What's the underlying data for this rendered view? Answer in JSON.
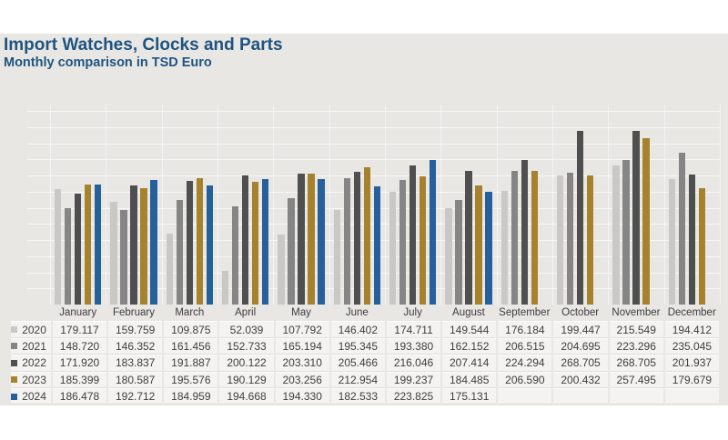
{
  "page": {
    "background": "#FFFFFF",
    "panel_background": "#E9E7E4"
  },
  "header": {
    "title": "Import Watches, Clocks and Parts",
    "subtitle": "Monthly comparison in TSD Euro",
    "title_color": "#1F5480"
  },
  "chart_data": {
    "type": "bar",
    "title": "Import Watches, Clocks and Parts",
    "subtitle": "Monthly comparison in TSD Euro",
    "unit": "TSD Euro",
    "categories": [
      "January",
      "February",
      "March",
      "April",
      "May",
      "June",
      "July",
      "August",
      "September",
      "October",
      "November",
      "December"
    ],
    "series": [
      {
        "name": "2020",
        "color": "#C9C8C6",
        "values": [
          179.117,
          159.759,
          109.875,
          52.039,
          107.792,
          146.402,
          174.711,
          149.544,
          176.184,
          199.447,
          215.549,
          194.412
        ]
      },
      {
        "name": "2021",
        "color": "#858585",
        "values": [
          148.72,
          146.352,
          161.456,
          152.733,
          165.194,
          195.345,
          193.38,
          162.152,
          206.515,
          204.695,
          223.296,
          235.045
        ]
      },
      {
        "name": "2022",
        "color": "#4F4F4F",
        "values": [
          171.92,
          183.837,
          191.887,
          200.122,
          203.31,
          205.466,
          216.046,
          207.414,
          224.294,
          268.705,
          268.705,
          201.937
        ]
      },
      {
        "name": "2023",
        "color": "#A6812E",
        "values": [
          185.399,
          180.587,
          195.576,
          190.129,
          203.256,
          212.954,
          199.237,
          184.485,
          206.59,
          200.432,
          257.495,
          179.679
        ]
      },
      {
        "name": "2024",
        "color": "#25609C",
        "values": [
          186.478,
          192.712,
          184.959,
          194.668,
          194.33,
          182.533,
          223.825,
          175.131,
          null,
          null,
          null,
          null
        ]
      }
    ],
    "ylim": [
      0,
      300
    ],
    "grid": true,
    "gridline_interval": 25,
    "legend_position": "table-rows-left"
  },
  "table": {
    "columns": [
      "January",
      "February",
      "March",
      "April",
      "May",
      "June",
      "July",
      "August",
      "September",
      "October",
      "November",
      "December"
    ],
    "rows": [
      {
        "year": "2020",
        "cells": [
          "179.117",
          "159.759",
          "109.875",
          "52.039",
          "107.792",
          "146.402",
          "174.711",
          "149.544",
          "176.184",
          "199.447",
          "215.549",
          "194.412"
        ]
      },
      {
        "year": "2021",
        "cells": [
          "148.720",
          "146.352",
          "161.456",
          "152.733",
          "165.194",
          "195.345",
          "193.380",
          "162.152",
          "206.515",
          "204.695",
          "223.296",
          "235.045"
        ]
      },
      {
        "year": "2022",
        "cells": [
          "171.920",
          "183.837",
          "191.887",
          "200.122",
          "203.310",
          "205.466",
          "216.046",
          "207.414",
          "224.294",
          "268.705",
          "268.705",
          "201.937"
        ]
      },
      {
        "year": "2023",
        "cells": [
          "185.399",
          "180.587",
          "195.576",
          "190.129",
          "203.256",
          "212.954",
          "199.237",
          "184.485",
          "206.590",
          "200.432",
          "257.495",
          "179.679"
        ]
      },
      {
        "year": "2024",
        "cells": [
          "186.478",
          "192.712",
          "184.959",
          "194.668",
          "194.330",
          "182.533",
          "223.825",
          "175.131",
          "",
          "",
          "",
          ""
        ]
      }
    ]
  }
}
